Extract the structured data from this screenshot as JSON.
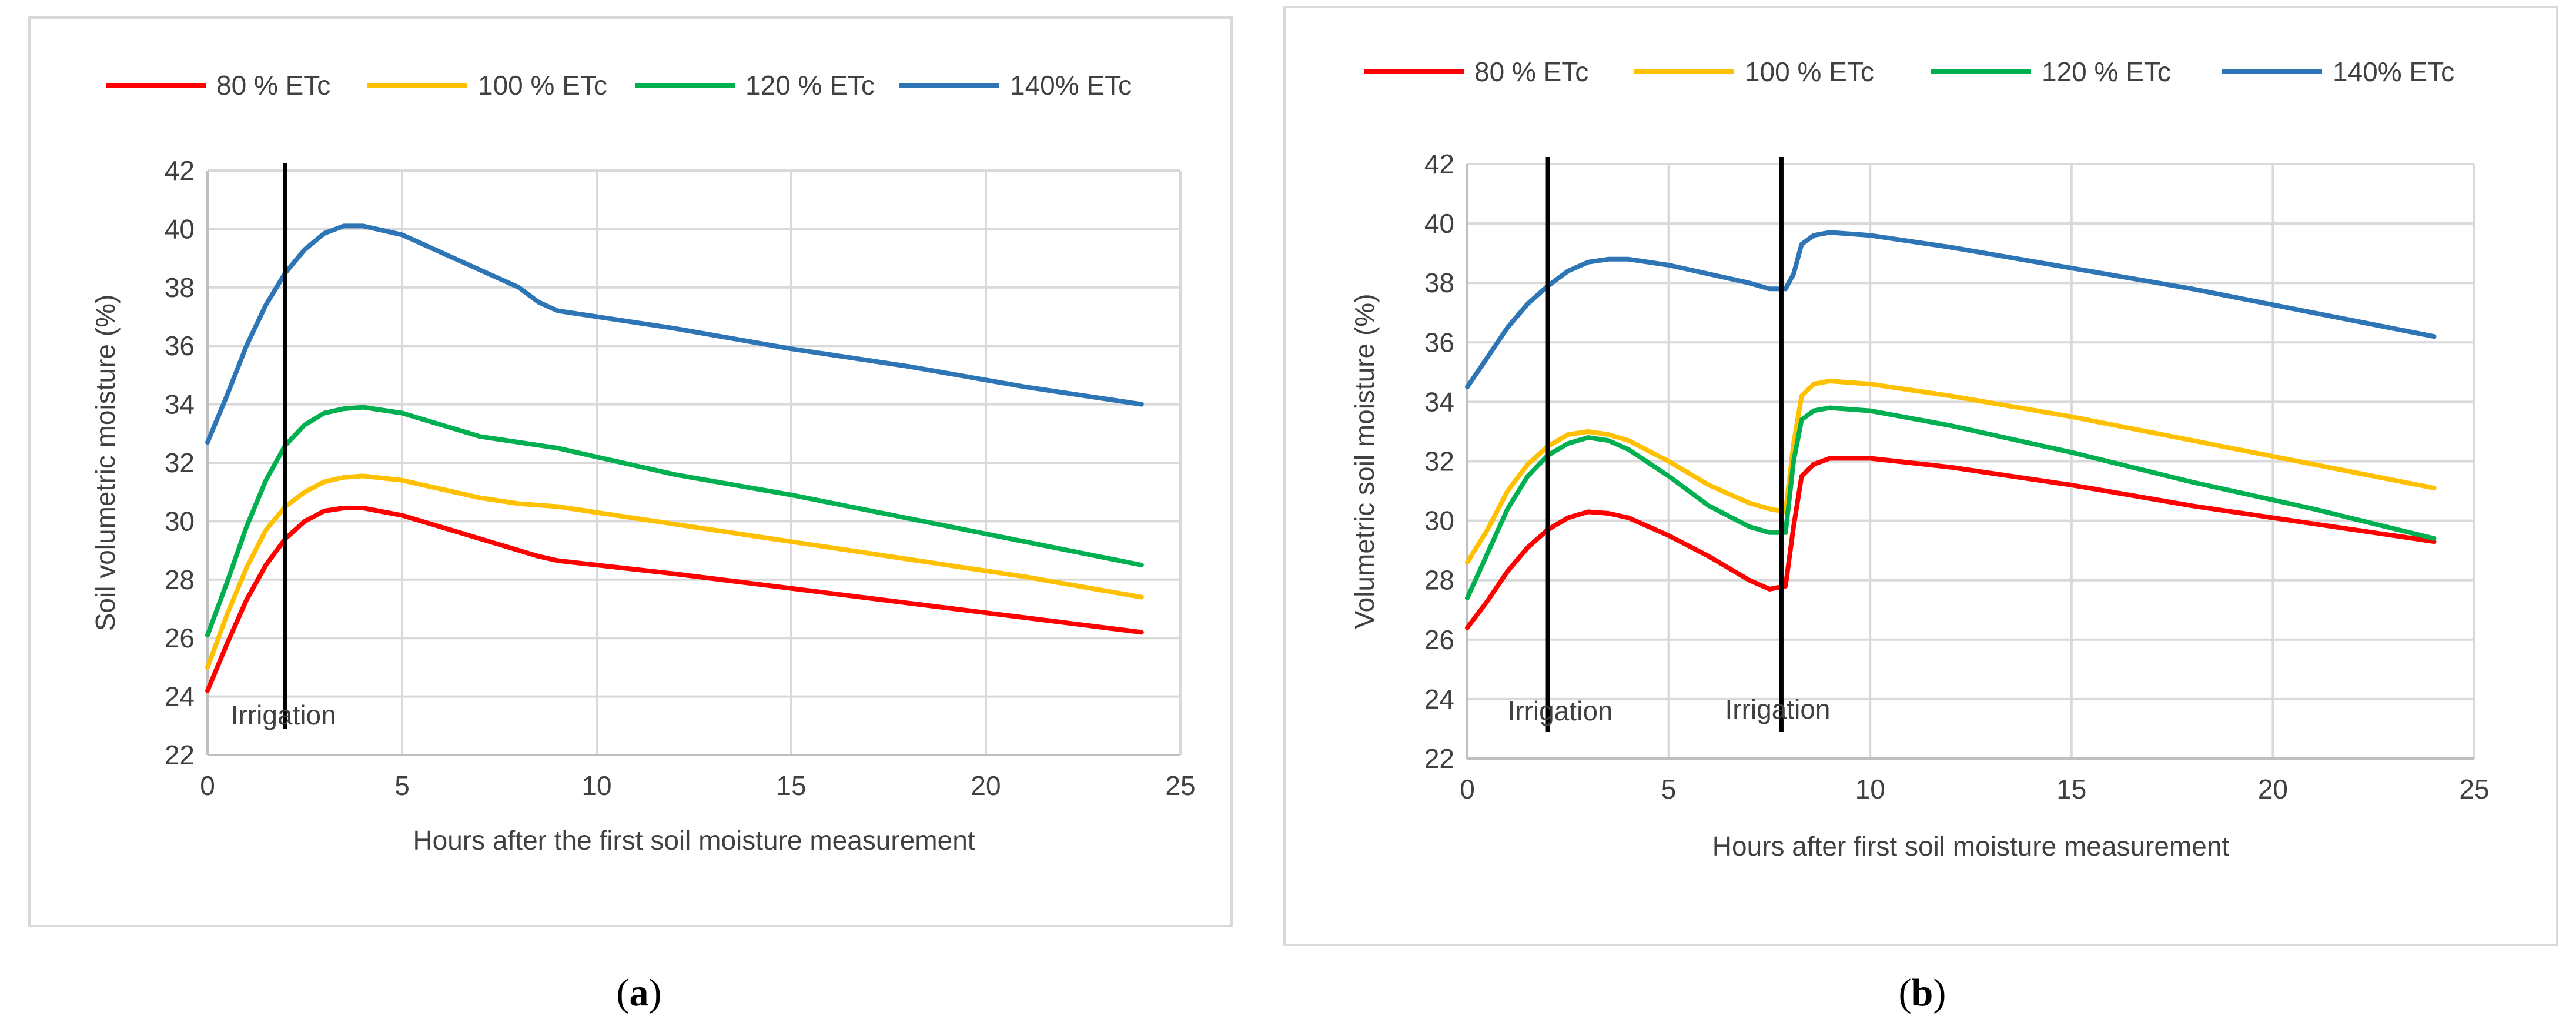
{
  "chart_data": [
    {
      "type": "line",
      "panel_label": "a",
      "title": "",
      "xlabel": "Hours after the first soil moisture measurement",
      "ylabel": "Soil volumetric moisture (%)",
      "xlim": [
        0,
        25
      ],
      "ylim": [
        22,
        42
      ],
      "xticks": [
        0,
        5,
        10,
        15,
        20,
        25
      ],
      "yticks": [
        22,
        24,
        26,
        28,
        30,
        32,
        34,
        36,
        38,
        40,
        42
      ],
      "grid": true,
      "legend_position": "top",
      "irrigation_events": [
        2
      ],
      "annotations": [
        {
          "text": "Irrigation",
          "x": 0.6,
          "y": 23
        }
      ],
      "series": [
        {
          "name": "80 % ETc",
          "color": "#ff0000",
          "x": [
            0,
            0.5,
            1,
            1.5,
            2,
            2.5,
            3,
            3.5,
            4,
            5,
            6,
            7,
            8,
            8.5,
            9,
            10,
            12,
            15,
            18,
            21,
            24
          ],
          "y": [
            24.2,
            25.8,
            27.3,
            28.5,
            29.4,
            30.0,
            30.35,
            30.45,
            30.45,
            30.2,
            29.8,
            29.4,
            29.0,
            28.8,
            28.65,
            28.5,
            28.2,
            27.7,
            27.2,
            26.7,
            26.2
          ]
        },
        {
          "name": "100 % ETc",
          "color": "#ffc000",
          "x": [
            0,
            0.5,
            1,
            1.5,
            2,
            2.5,
            3,
            3.5,
            4,
            5,
            6,
            7,
            8,
            9,
            10,
            12,
            15,
            18,
            21,
            24
          ],
          "y": [
            25.0,
            26.8,
            28.4,
            29.7,
            30.5,
            31.0,
            31.35,
            31.5,
            31.55,
            31.4,
            31.1,
            30.8,
            30.6,
            30.5,
            30.3,
            29.9,
            29.3,
            28.7,
            28.1,
            27.4
          ]
        },
        {
          "name": "120 % ETc",
          "color": "#00b050",
          "x": [
            0,
            0.5,
            1,
            1.5,
            2,
            2.5,
            3,
            3.5,
            4,
            5,
            6,
            7,
            8,
            9,
            10,
            12,
            15,
            18,
            21,
            24
          ],
          "y": [
            26.1,
            27.9,
            29.8,
            31.4,
            32.6,
            33.3,
            33.7,
            33.85,
            33.9,
            33.7,
            33.3,
            32.9,
            32.7,
            32.5,
            32.2,
            31.6,
            30.9,
            30.1,
            29.3,
            28.5
          ]
        },
        {
          "name": "140% ETc",
          "color": "#2e75b6",
          "x": [
            0,
            0.5,
            1,
            1.5,
            2,
            2.5,
            3,
            3.5,
            4,
            5,
            6,
            7,
            8,
            8.5,
            9,
            10,
            12,
            15,
            18,
            21,
            24
          ],
          "y": [
            32.7,
            34.3,
            36.0,
            37.4,
            38.5,
            39.3,
            39.85,
            40.1,
            40.1,
            39.8,
            39.2,
            38.6,
            38.0,
            37.5,
            37.2,
            37.0,
            36.6,
            35.9,
            35.3,
            34.6,
            34.0
          ]
        }
      ],
      "legend": [
        "80 % ETc",
        "100 % ETc",
        "120 % ETc",
        "140% ETc"
      ]
    },
    {
      "type": "line",
      "panel_label": "b",
      "title": "",
      "xlabel": "Hours after first soil moisture measurement",
      "ylabel": "Volumetric soil moisture (%)",
      "xlim": [
        0,
        25
      ],
      "ylim": [
        22,
        42
      ],
      "xticks": [
        0,
        5,
        10,
        15,
        20,
        25
      ],
      "yticks": [
        22,
        24,
        26,
        28,
        30,
        32,
        34,
        36,
        38,
        40,
        42
      ],
      "grid": true,
      "legend_position": "top",
      "irrigation_events": [
        2,
        7.8
      ],
      "annotations": [
        {
          "text": "Irrigation",
          "x": 1.0,
          "y": 23.2
        },
        {
          "text": "Irrigation",
          "x": 6.4,
          "y": 23.3
        }
      ],
      "series": [
        {
          "name": "80 % ETc",
          "color": "#ff0000",
          "x": [
            0,
            0.5,
            1,
            1.5,
            2,
            2.5,
            3,
            3.5,
            4,
            5,
            6,
            7,
            7.5,
            7.9,
            8.1,
            8.3,
            8.6,
            9,
            10,
            12,
            15,
            18,
            21,
            24
          ],
          "y": [
            26.4,
            27.3,
            28.3,
            29.1,
            29.7,
            30.1,
            30.3,
            30.25,
            30.1,
            29.5,
            28.8,
            28.0,
            27.7,
            27.8,
            29.8,
            31.5,
            31.9,
            32.1,
            32.1,
            31.8,
            31.2,
            30.5,
            29.9,
            29.3
          ]
        },
        {
          "name": "100 % ETc",
          "color": "#ffc000",
          "x": [
            0,
            0.5,
            1,
            1.5,
            2,
            2.5,
            3,
            3.5,
            4,
            5,
            6,
            7,
            7.5,
            7.9,
            8.1,
            8.3,
            8.6,
            9,
            10,
            12,
            15,
            18,
            21,
            24
          ],
          "y": [
            28.6,
            29.7,
            31.0,
            31.9,
            32.5,
            32.9,
            33.0,
            32.9,
            32.7,
            32.0,
            31.2,
            30.6,
            30.4,
            30.3,
            32.6,
            34.2,
            34.6,
            34.7,
            34.6,
            34.2,
            33.5,
            32.7,
            31.9,
            31.1
          ]
        },
        {
          "name": "120 % ETc",
          "color": "#00b050",
          "x": [
            0,
            0.5,
            1,
            1.5,
            2,
            2.5,
            3,
            3.5,
            4,
            5,
            6,
            7,
            7.5,
            7.9,
            8.1,
            8.3,
            8.6,
            9,
            10,
            12,
            15,
            18,
            21,
            24
          ],
          "y": [
            27.4,
            28.9,
            30.4,
            31.5,
            32.2,
            32.6,
            32.8,
            32.7,
            32.4,
            31.5,
            30.5,
            29.8,
            29.6,
            29.6,
            32.0,
            33.4,
            33.7,
            33.8,
            33.7,
            33.2,
            32.3,
            31.3,
            30.4,
            29.4
          ]
        },
        {
          "name": "140% ETc",
          "color": "#2e75b6",
          "x": [
            0,
            0.5,
            1,
            1.5,
            2,
            2.5,
            3,
            3.5,
            4,
            5,
            6,
            7,
            7.5,
            7.9,
            8.1,
            8.3,
            8.6,
            9,
            10,
            12,
            15,
            18,
            21,
            24
          ],
          "y": [
            34.5,
            35.5,
            36.5,
            37.3,
            37.9,
            38.4,
            38.7,
            38.8,
            38.8,
            38.6,
            38.3,
            38.0,
            37.8,
            37.8,
            38.3,
            39.3,
            39.6,
            39.7,
            39.6,
            39.2,
            38.5,
            37.8,
            37.0,
            36.2
          ]
        }
      ],
      "legend": [
        "80 % ETc",
        "100 % ETc",
        "120 % ETc",
        "140% ETc"
      ]
    }
  ]
}
